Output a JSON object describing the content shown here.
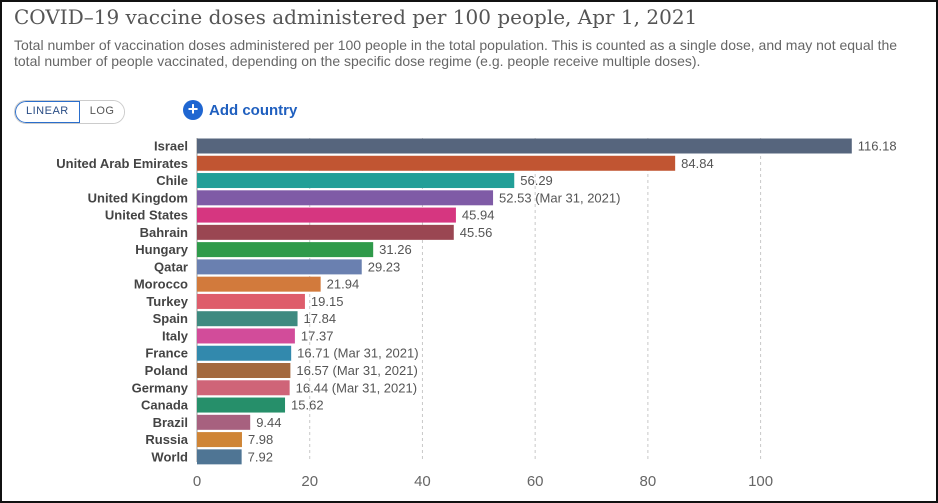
{
  "title": "COVID–19 vaccine doses administered per 100 people, Apr 1, 2021",
  "subtitle": "Total number of vaccination doses administered per 100 people in the total population. This is counted as a single dose, and may not equal the total number of people vaccinated, depending on the specific dose regime (e.g. people receive multiple doses).",
  "controls": {
    "linear_label": "LINEAR",
    "log_label": "LOG",
    "add_country_label": "Add country",
    "add_icon": "plus-icon"
  },
  "chart_data": {
    "type": "bar",
    "orientation": "horizontal",
    "xlim": [
      0,
      116.18
    ],
    "xticks": [
      0,
      20,
      40,
      60,
      80,
      100
    ],
    "grid": true,
    "categories": [
      "Israel",
      "United Arab Emirates",
      "Chile",
      "United Kingdom",
      "United States",
      "Bahrain",
      "Hungary",
      "Qatar",
      "Morocco",
      "Turkey",
      "Spain",
      "Italy",
      "France",
      "Poland",
      "Germany",
      "Canada",
      "Brazil",
      "Russia",
      "World"
    ],
    "values": [
      116.18,
      84.84,
      56.29,
      52.53,
      45.94,
      45.56,
      31.26,
      29.23,
      21.94,
      19.15,
      17.84,
      17.37,
      16.71,
      16.57,
      16.44,
      15.62,
      9.44,
      7.98,
      7.92
    ],
    "labels": [
      "116.18",
      "84.84",
      "56.29",
      "52.53 (Mar 31, 2021)",
      "45.94",
      "45.56",
      "31.26",
      "29.23",
      "21.94",
      "19.15",
      "17.84",
      "17.37",
      "16.71 (Mar 31, 2021)",
      "16.57 (Mar 31, 2021)",
      "16.44 (Mar 31, 2021)",
      "15.62",
      "9.44",
      "7.98",
      "7.92"
    ],
    "colors": [
      "#56657d",
      "#c15532",
      "#229f98",
      "#7f5ba6",
      "#d63680",
      "#9a4652",
      "#2f9a4a",
      "#6a80b0",
      "#d27a3c",
      "#de5d6b",
      "#3e8a80",
      "#d24c9a",
      "#3289ad",
      "#a4693e",
      "#cf6478",
      "#268f6a",
      "#a7617f",
      "#cf8536",
      "#4f7594"
    ]
  }
}
